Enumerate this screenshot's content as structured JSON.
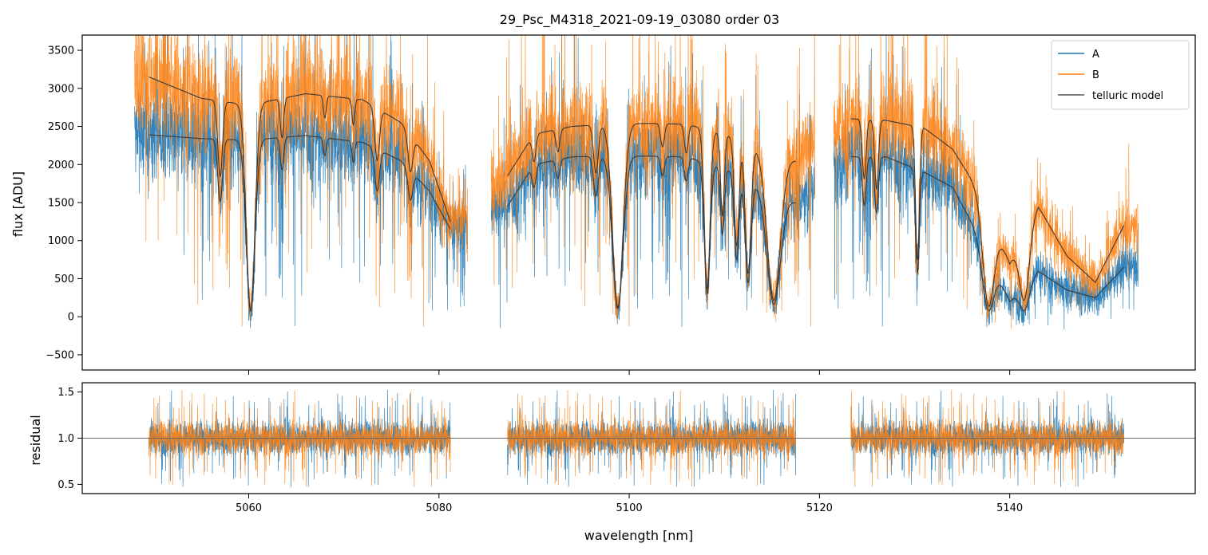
{
  "chart_data": [
    {
      "type": "line",
      "panel": "spectrum",
      "title": "29_Psc_M4318_2021-09-19_03080  order 03",
      "xlabel": "",
      "ylabel": "flux [ADU]",
      "xlim": [
        5042.5,
        5159.5
      ],
      "ylim": [
        -700,
        3700
      ],
      "yticks": [
        -500,
        0,
        500,
        1000,
        1500,
        2000,
        2500,
        3000,
        3500
      ],
      "xticks": [
        5060,
        5080,
        5100,
        5120,
        5140
      ],
      "legend": {
        "placement": "top-right",
        "entries": [
          "A",
          "B",
          "telluric model"
        ]
      },
      "segments": [
        {
          "x_start": 5048.0,
          "x_end": 5083.0,
          "model_start": 5049.5,
          "model_end": 5081.2
        },
        {
          "x_start": 5085.5,
          "x_end": 5119.5,
          "model_start": 5087.2,
          "model_end": 5117.5
        },
        {
          "x_start": 5121.5,
          "x_end": 5153.5,
          "model_start": 5123.3,
          "model_end": 5152.0
        }
      ],
      "continuum_A": {
        "x": [
          5049.5,
          5055,
          5060,
          5066,
          5072,
          5076,
          5079,
          5081.2,
          5087.2,
          5090,
          5094,
          5098,
          5102,
          5106,
          5110,
          5114,
          5117.5,
          5123.3,
          5127,
          5131,
          5134,
          5137,
          5140,
          5143,
          5146,
          5149,
          5152
        ],
        "values": [
          2390,
          2340,
          2320,
          2380,
          2290,
          2050,
          1650,
          1150,
          1450,
          2000,
          2100,
          2110,
          2110,
          2100,
          1950,
          1700,
          1500,
          2100,
          2100,
          1900,
          1700,
          1000,
          200,
          600,
          350,
          250,
          650
        ]
      },
      "continuum_B": {
        "x": [
          5049.5,
          5055,
          5060,
          5066,
          5072,
          5076,
          5079,
          5081.2,
          5087.2,
          5090,
          5094,
          5098,
          5102,
          5106,
          5110,
          5114,
          5117.5,
          5123.3,
          5127,
          5131,
          5134,
          5137,
          5140,
          5143,
          5146,
          5149,
          5152
        ],
        "values": [
          3150,
          2870,
          2780,
          2930,
          2850,
          2550,
          2050,
          1250,
          1850,
          2400,
          2500,
          2530,
          2540,
          2530,
          2400,
          2200,
          2050,
          2600,
          2580,
          2480,
          2200,
          1600,
          700,
          1450,
          800,
          450,
          1200
        ]
      },
      "absorption_lines": [
        {
          "center": 5057.0,
          "depth": 0.35,
          "width": 0.25
        },
        {
          "center": 5060.2,
          "depth": 0.97,
          "width": 0.45
        },
        {
          "center": 5063.5,
          "depth": 0.18,
          "width": 0.18
        },
        {
          "center": 5068.0,
          "depth": 0.1,
          "width": 0.15
        },
        {
          "center": 5071.0,
          "depth": 0.12,
          "width": 0.15
        },
        {
          "center": 5073.5,
          "depth": 0.25,
          "width": 0.25
        },
        {
          "center": 5077.0,
          "depth": 0.2,
          "width": 0.25
        },
        {
          "center": 5090.0,
          "depth": 0.15,
          "width": 0.2
        },
        {
          "center": 5092.5,
          "depth": 0.12,
          "width": 0.2
        },
        {
          "center": 5096.5,
          "depth": 0.25,
          "width": 0.25
        },
        {
          "center": 5098.8,
          "depth": 0.95,
          "width": 0.55
        },
        {
          "center": 5103.5,
          "depth": 0.12,
          "width": 0.2
        },
        {
          "center": 5106.0,
          "depth": 0.15,
          "width": 0.2
        },
        {
          "center": 5108.2,
          "depth": 0.85,
          "width": 0.3
        },
        {
          "center": 5109.8,
          "depth": 0.45,
          "width": 0.2
        },
        {
          "center": 5111.3,
          "depth": 0.6,
          "width": 0.25
        },
        {
          "center": 5112.5,
          "depth": 0.75,
          "width": 0.3
        },
        {
          "center": 5115.2,
          "depth": 0.9,
          "width": 0.7
        },
        {
          "center": 5124.7,
          "depth": 0.3,
          "width": 0.2
        },
        {
          "center": 5126.0,
          "depth": 0.35,
          "width": 0.2
        },
        {
          "center": 5130.3,
          "depth": 0.7,
          "width": 0.2
        },
        {
          "center": 5137.8,
          "depth": 0.9,
          "width": 0.6
        },
        {
          "center": 5141.5,
          "depth": 0.8,
          "width": 0.5
        }
      ]
    },
    {
      "type": "line",
      "panel": "residual",
      "title": "",
      "xlabel": "wavelength [nm]",
      "ylabel": "residual",
      "xlim": [
        5042.5,
        5159.5
      ],
      "ylim": [
        0.4,
        1.6
      ],
      "yticks": [
        0.5,
        1.0,
        1.5
      ],
      "yticklabels": [
        "0.5",
        "1.0",
        "1.5"
      ],
      "xticks": [
        5060,
        5080,
        5100,
        5120,
        5140
      ],
      "reference_line": 1.0,
      "segments": [
        {
          "x_start": 5049.5,
          "x_end": 5081.2
        },
        {
          "x_start": 5087.2,
          "x_end": 5117.5
        },
        {
          "x_start": 5123.3,
          "x_end": 5152.0
        }
      ],
      "noise_amplitude": {
        "A": 0.17,
        "B": 0.17
      }
    }
  ],
  "colors": {
    "A": "#1f77b4",
    "B": "#ff7f0e",
    "model": "#3a3a3a"
  }
}
